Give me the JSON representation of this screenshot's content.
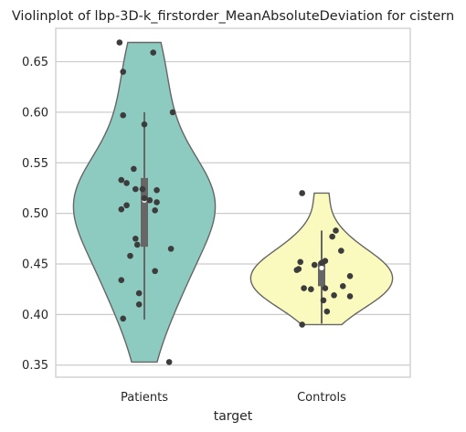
{
  "chart_data": {
    "type": "violin",
    "title": "Violinplot of lbp-3D-k_firstorder_MeanAbsoluteDeviation for cistern",
    "xlabel": "target",
    "ylabel": "",
    "ylim": [
      0.338,
      0.683
    ],
    "yticks": [
      0.35,
      0.4,
      0.45,
      0.5,
      0.55,
      0.6,
      0.65
    ],
    "ytick_labels": [
      "0.35",
      "0.40",
      "0.45",
      "0.50",
      "0.55",
      "0.60",
      "0.65"
    ],
    "grid": true,
    "categories": [
      "Patients",
      "Controls"
    ],
    "series": [
      {
        "category": "Patients",
        "color": "#8dcbc0",
        "violin_range": [
          0.353,
          0.669
        ],
        "box": {
          "whisker_low": 0.395,
          "q1": 0.467,
          "median": 0.513,
          "q3": 0.535,
          "whisker_high": 0.6
        },
        "points": [
          {
            "j": -0.14,
            "y": 0.669
          },
          {
            "j": 0.05,
            "y": 0.659
          },
          {
            "j": -0.12,
            "y": 0.64
          },
          {
            "j": 0.16,
            "y": 0.6
          },
          {
            "j": -0.12,
            "y": 0.597
          },
          {
            "j": 0.0,
            "y": 0.588
          },
          {
            "j": -0.06,
            "y": 0.544
          },
          {
            "j": -0.13,
            "y": 0.533
          },
          {
            "j": -0.1,
            "y": 0.53
          },
          {
            "j": -0.05,
            "y": 0.524
          },
          {
            "j": -0.01,
            "y": 0.524
          },
          {
            "j": 0.07,
            "y": 0.523
          },
          {
            "j": 0.0,
            "y": 0.515
          },
          {
            "j": 0.03,
            "y": 0.513
          },
          {
            "j": 0.07,
            "y": 0.511
          },
          {
            "j": -0.13,
            "y": 0.504
          },
          {
            "j": -0.1,
            "y": 0.508
          },
          {
            "j": 0.06,
            "y": 0.503
          },
          {
            "j": -0.05,
            "y": 0.475
          },
          {
            "j": -0.04,
            "y": 0.469
          },
          {
            "j": 0.15,
            "y": 0.465
          },
          {
            "j": -0.08,
            "y": 0.458
          },
          {
            "j": 0.06,
            "y": 0.443
          },
          {
            "j": -0.13,
            "y": 0.434
          },
          {
            "j": -0.03,
            "y": 0.421
          },
          {
            "j": -0.03,
            "y": 0.41
          },
          {
            "j": -0.12,
            "y": 0.396
          },
          {
            "j": 0.14,
            "y": 0.353
          }
        ]
      },
      {
        "category": "Controls",
        "color": "#fafabf",
        "violin_range": [
          0.39,
          0.52
        ],
        "box": {
          "whisker_low": 0.391,
          "q1": 0.428,
          "median": 0.446,
          "q3": 0.452,
          "whisker_high": 0.483
        },
        "points": [
          {
            "j": -0.11,
            "y": 0.52
          },
          {
            "j": 0.08,
            "y": 0.483
          },
          {
            "j": 0.06,
            "y": 0.477
          },
          {
            "j": 0.11,
            "y": 0.463
          },
          {
            "j": 0.02,
            "y": 0.453
          },
          {
            "j": 0.0,
            "y": 0.451
          },
          {
            "j": -0.12,
            "y": 0.452
          },
          {
            "j": -0.04,
            "y": 0.449
          },
          {
            "j": -0.13,
            "y": 0.445
          },
          {
            "j": -0.14,
            "y": 0.444
          },
          {
            "j": 0.16,
            "y": 0.438
          },
          {
            "j": 0.12,
            "y": 0.428
          },
          {
            "j": 0.02,
            "y": 0.426
          },
          {
            "j": -0.06,
            "y": 0.425
          },
          {
            "j": -0.1,
            "y": 0.426
          },
          {
            "j": 0.07,
            "y": 0.419
          },
          {
            "j": 0.16,
            "y": 0.418
          },
          {
            "j": 0.01,
            "y": 0.414
          },
          {
            "j": 0.03,
            "y": 0.403
          },
          {
            "j": -0.11,
            "y": 0.39
          }
        ]
      }
    ]
  }
}
